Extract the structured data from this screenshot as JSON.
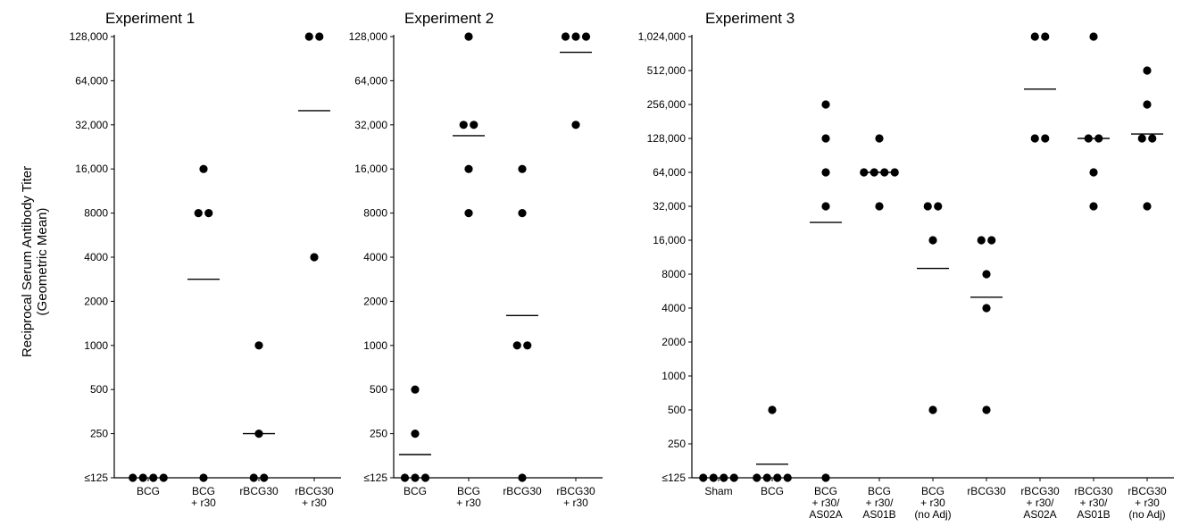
{
  "figure": {
    "ylabel_line1": "Reciprocal Serum Antibody Titer",
    "ylabel_line2": "(Geometric Mean)"
  },
  "chart_data": [
    {
      "type": "scatter",
      "title": "Experiment 1",
      "ylabel": "Reciprocal Serum Antibody Titer (Geometric Mean)",
      "yscale": "log2",
      "ylim": [
        125,
        128000
      ],
      "ytick_values": [
        125,
        250,
        500,
        1000,
        2000,
        4000,
        8000,
        16000,
        32000,
        64000,
        128000
      ],
      "ytick_labels": [
        "≤125",
        "250",
        "500",
        "1000",
        "2000",
        "4000",
        "8000",
        "16,000",
        "32,000",
        "64,000",
        "128,000"
      ],
      "groups": [
        {
          "label": [
            "BCG"
          ],
          "points": [
            125,
            125,
            125,
            125
          ],
          "geometric_mean": null
        },
        {
          "label": [
            "BCG",
            "+ r30"
          ],
          "points": [
            8000,
            8000,
            16000,
            125
          ],
          "geometric_mean": 2828
        },
        {
          "label": [
            "rBCG30"
          ],
          "points": [
            1000,
            250,
            125,
            125
          ],
          "geometric_mean": 250
        },
        {
          "label": [
            "rBCG30",
            "+ r30"
          ],
          "points": [
            128000,
            128000,
            4000
          ],
          "geometric_mean": 40000
        }
      ]
    },
    {
      "type": "scatter",
      "title": "Experiment 2",
      "yscale": "log2",
      "ylim": [
        125,
        128000
      ],
      "ytick_values": [
        125,
        250,
        500,
        1000,
        2000,
        4000,
        8000,
        16000,
        32000,
        64000,
        128000
      ],
      "ytick_labels": [
        "≤125",
        "250",
        "500",
        "1000",
        "2000",
        "4000",
        "8000",
        "16,000",
        "32,000",
        "64,000",
        "128,000"
      ],
      "groups": [
        {
          "label": [
            "BCG"
          ],
          "points": [
            500,
            250,
            125,
            125,
            125
          ],
          "geometric_mean": 180
        },
        {
          "label": [
            "BCG",
            "+ r30"
          ],
          "points": [
            128000,
            32000,
            32000,
            16000,
            8000
          ],
          "geometric_mean": 27000
        },
        {
          "label": [
            "rBCG30"
          ],
          "points": [
            16000,
            8000,
            1000,
            1000,
            125
          ],
          "geometric_mean": 1600
        },
        {
          "label": [
            "rBCG30",
            "+ r30"
          ],
          "points": [
            128000,
            128000,
            128000,
            32000
          ],
          "geometric_mean": 100000
        }
      ]
    },
    {
      "type": "scatter",
      "title": "Experiment 3",
      "yscale": "log2",
      "ylim": [
        125,
        1024000
      ],
      "ytick_values": [
        125,
        250,
        500,
        1000,
        2000,
        4000,
        8000,
        16000,
        32000,
        64000,
        128000,
        256000,
        512000,
        1024000
      ],
      "ytick_labels": [
        "≤125",
        "250",
        "500",
        "1000",
        "2000",
        "4000",
        "8000",
        "16,000",
        "32,000",
        "64,000",
        "128,000",
        "256,000",
        "512,000",
        "1,024,000"
      ],
      "groups": [
        {
          "label": [
            "Sham"
          ],
          "points": [
            125,
            125,
            125,
            125
          ],
          "geometric_mean": null
        },
        {
          "label": [
            "BCG"
          ],
          "points": [
            500,
            125,
            125,
            125,
            125
          ],
          "geometric_mean": 165
        },
        {
          "label": [
            "BCG",
            "+ r30/",
            "AS02A"
          ],
          "points": [
            256000,
            128000,
            64000,
            32000,
            125
          ],
          "geometric_mean": 23000
        },
        {
          "label": [
            "BCG",
            "+ r30/",
            "AS01B"
          ],
          "points": [
            128000,
            64000,
            64000,
            64000,
            64000,
            32000
          ],
          "geometric_mean": 64000
        },
        {
          "label": [
            "BCG",
            "+ r30",
            "(no Adj)"
          ],
          "points": [
            32000,
            32000,
            16000,
            500
          ],
          "geometric_mean": 9000
        },
        {
          "label": [
            "rBCG30"
          ],
          "points": [
            16000,
            16000,
            8000,
            4000,
            500
          ],
          "geometric_mean": 5000
        },
        {
          "label": [
            "rBCG30",
            "+ r30/",
            "AS02A"
          ],
          "points": [
            1024000,
            1024000,
            128000,
            128000
          ],
          "geometric_mean": 350000
        },
        {
          "label": [
            "rBCG30",
            "+ r30/",
            "AS01B"
          ],
          "points": [
            1024000,
            128000,
            128000,
            64000,
            32000
          ],
          "geometric_mean": 128000
        },
        {
          "label": [
            "rBCG30",
            "+ r30",
            "(no Adj)"
          ],
          "points": [
            512000,
            256000,
            128000,
            128000,
            32000
          ],
          "geometric_mean": 140000
        }
      ]
    }
  ]
}
